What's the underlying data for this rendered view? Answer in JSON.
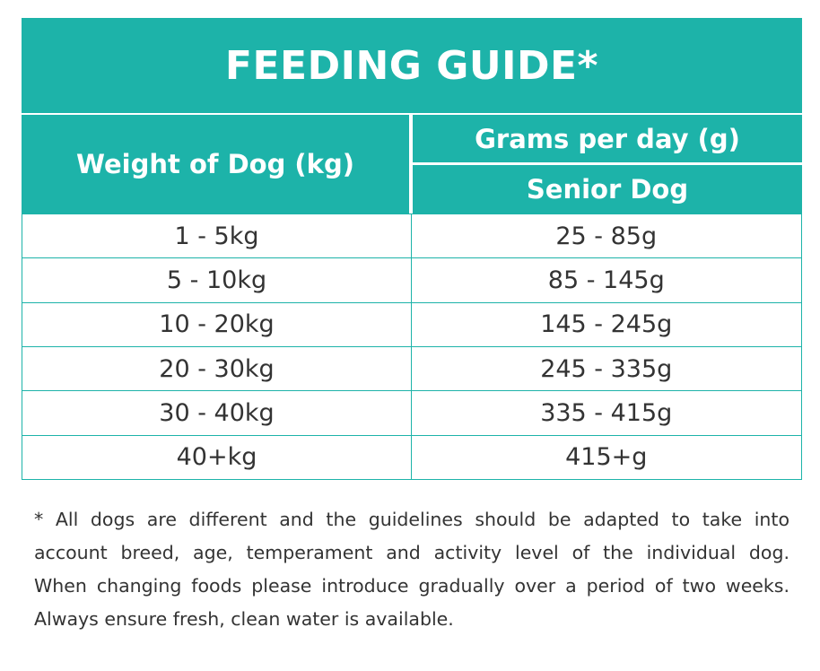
{
  "table": {
    "title": "FEEDING GUIDE*",
    "header": {
      "weight": "Weight of Dog (kg)",
      "grams": "Grams per day (g)",
      "senior": "Senior Dog"
    },
    "rows": [
      [
        "1 - 5kg",
        "25 - 85g"
      ],
      [
        "5 - 10kg",
        "85 - 145g"
      ],
      [
        "10 - 20kg",
        "145 - 245g"
      ],
      [
        "20 - 30kg",
        "245 - 335g"
      ],
      [
        "30 - 40kg",
        "335 - 415g"
      ],
      [
        "40+kg",
        "415+g"
      ]
    ]
  },
  "footnote": [
    "* All dogs are different and the guidelines should be adapted to take into",
    "account breed, age, temperament and activity level of the individual dog.",
    "When changing foods please introduce gradually over a period of two weeks.",
    "Always ensure fresh, clean water is available."
  ]
}
